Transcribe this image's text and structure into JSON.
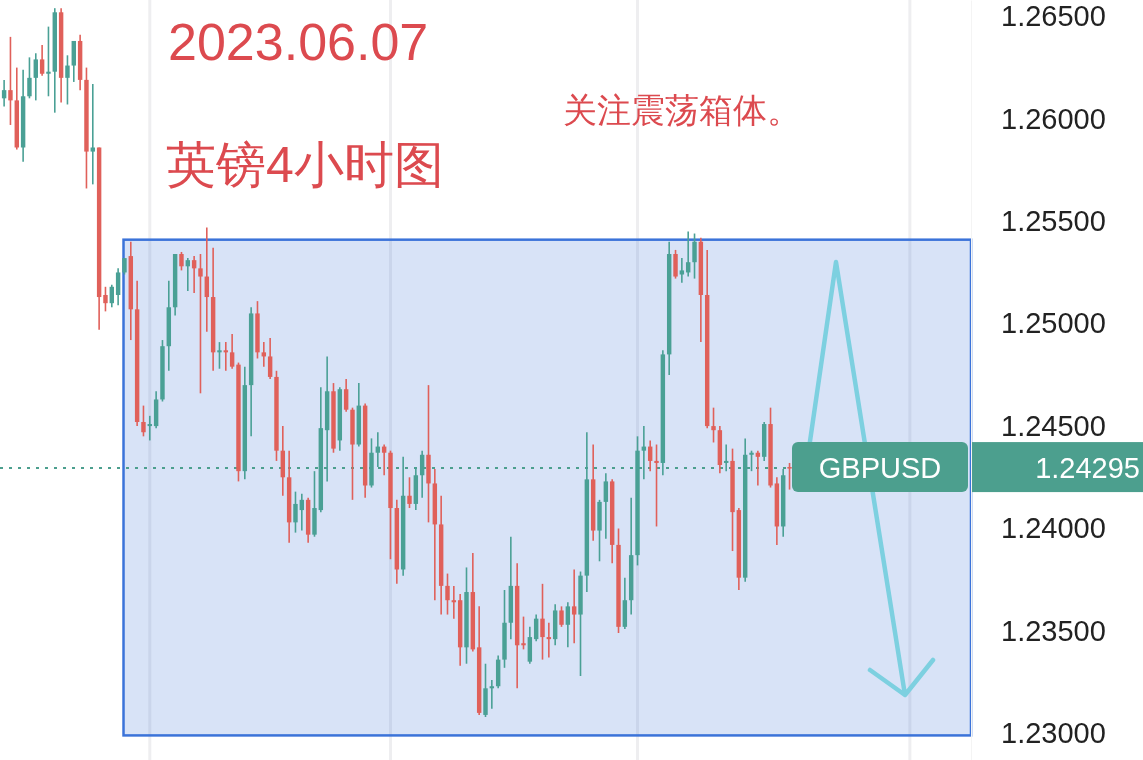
{
  "chart_data": {
    "type": "candlestick",
    "title": "2023.06.07",
    "subtitle": "英镑4小时图",
    "annotations": [
      "关注震荡箱体。",
      "1.24295"
    ],
    "categories": [
      null,
      null,
      null,
      null,
      null,
      null,
      null,
      null,
      null,
      null,
      null,
      null,
      null,
      null,
      null,
      null,
      null,
      null,
      null,
      null,
      null,
      null,
      null,
      null,
      null,
      null,
      null,
      null,
      null,
      null,
      null,
      null,
      null,
      null,
      null,
      null,
      null,
      null,
      null,
      null,
      null,
      null,
      null,
      null,
      null,
      null,
      null,
      null,
      null,
      null,
      null,
      null,
      null,
      null,
      null,
      null,
      null,
      null,
      null,
      null,
      null,
      null,
      null,
      null,
      null,
      null,
      null,
      null,
      null,
      null,
      null,
      null,
      null,
      null,
      null,
      null,
      null,
      null,
      null,
      null,
      null,
      null,
      null,
      null,
      null,
      null,
      null,
      null,
      null,
      null,
      null,
      null,
      null,
      null,
      null,
      null,
      null,
      null,
      null,
      null,
      null,
      null,
      null,
      null,
      null,
      null,
      null,
      null,
      null,
      null,
      null,
      null,
      null,
      null,
      null,
      null,
      null,
      null,
      null,
      null,
      null,
      null,
      null,
      null,
      null,
      null,
      null,
      null,
      null,
      null,
      null,
      null,
      null,
      null,
      null,
      null,
      null,
      null,
      null,
      null,
      null,
      null,
      null,
      null,
      null,
      null,
      null,
      null,
      null,
      null,
      null,
      null,
      null
    ],
    "ohlc": [
      [
        1.261,
        1.2619,
        1.2606,
        1.2614
      ],
      [
        1.2614,
        1.264,
        1.2597,
        1.2609
      ],
      [
        1.2609,
        1.2625,
        1.2585,
        1.2586
      ],
      [
        1.2586,
        1.2624,
        1.2579,
        1.2611
      ],
      [
        1.2611,
        1.263,
        1.261,
        1.262
      ],
      [
        1.262,
        1.2632,
        1.2609,
        1.2629
      ],
      [
        1.2629,
        1.2636,
        1.2621,
        1.2622
      ],
      [
        1.2622,
        1.2645,
        1.2611,
        1.2623
      ],
      [
        1.2623,
        1.2654,
        1.2603,
        1.2652
      ],
      [
        1.2652,
        1.2654,
        1.2608,
        1.262
      ],
      [
        1.262,
        1.2631,
        1.2607,
        1.2626
      ],
      [
        1.2626,
        1.2638,
        1.2618,
        1.2638
      ],
      [
        1.2638,
        1.2641,
        1.2614,
        1.2619
      ],
      [
        1.2619,
        1.2625,
        1.2566,
        1.2584
      ],
      [
        1.2584,
        1.2617,
        1.2568,
        1.2586
      ],
      [
        1.2586,
        1.2586,
        1.2497,
        1.2513
      ],
      [
        1.2514,
        1.2518,
        1.2506,
        1.251
      ],
      [
        1.251,
        1.2519,
        1.2508,
        1.2518
      ],
      [
        1.2514,
        1.2527,
        1.2509,
        1.2525
      ],
      [
        1.2525,
        1.2532,
        1.2524,
        1.2532
      ],
      [
        1.2533,
        1.254,
        1.2492,
        1.2507
      ],
      [
        1.2507,
        1.2521,
        1.245,
        1.2452
      ],
      [
        1.2452,
        1.246,
        1.2445,
        1.2447
      ],
      [
        1.245,
        1.2455,
        1.2443,
        1.2451
      ],
      [
        1.245,
        1.2467,
        1.2449,
        1.2463
      ],
      [
        1.2463,
        1.2492,
        1.2462,
        1.2489
      ],
      [
        1.2489,
        1.2521,
        1.2477,
        1.2508
      ],
      [
        1.2508,
        1.2534,
        1.2504,
        1.2534
      ],
      [
        1.2534,
        1.2535,
        1.2526,
        1.2528
      ],
      [
        1.2528,
        1.2532,
        1.2516,
        1.2531
      ],
      [
        1.2531,
        1.2533,
        1.2515,
        1.2527
      ],
      [
        1.2527,
        1.2534,
        1.2466,
        1.2523
      ],
      [
        1.2523,
        1.2547,
        1.2496,
        1.2513
      ],
      [
        1.2513,
        1.2537,
        1.2477,
        1.2486
      ],
      [
        1.2486,
        1.2491,
        1.2478,
        1.2487
      ],
      [
        1.2487,
        1.2491,
        1.2477,
        1.2486
      ],
      [
        1.2486,
        1.2495,
        1.2478,
        1.2479
      ],
      [
        1.248,
        1.2481,
        1.2423,
        1.2428
      ],
      [
        1.2428,
        1.2479,
        1.2424,
        1.247
      ],
      [
        1.247,
        1.2508,
        1.2445,
        1.2505
      ],
      [
        1.2505,
        1.2511,
        1.2483,
        1.2486
      ],
      [
        1.2486,
        1.2491,
        1.2479,
        1.2484
      ],
      [
        1.2484,
        1.2493,
        1.2473,
        1.2474
      ],
      [
        1.2474,
        1.2477,
        1.2433,
        1.2438
      ],
      [
        1.2438,
        1.245,
        1.2416,
        1.2425
      ],
      [
        1.2425,
        1.2438,
        1.2393,
        1.2403
      ],
      [
        1.2403,
        1.2418,
        1.2398,
        1.2412
      ],
      [
        1.2409,
        1.2417,
        1.2399,
        1.2414
      ],
      [
        1.2414,
        1.2415,
        1.2393,
        1.2397
      ],
      [
        1.2397,
        1.2428,
        1.2396,
        1.241
      ],
      [
        1.2409,
        1.2469,
        1.2408,
        1.2449
      ],
      [
        1.2448,
        1.2484,
        1.2423,
        1.2467
      ],
      [
        1.2467,
        1.2471,
        1.2437,
        1.2439
      ],
      [
        1.2443,
        1.2469,
        1.2438,
        1.2468
      ],
      [
        1.2468,
        1.2473,
        1.2457,
        1.2458
      ],
      [
        1.2458,
        1.2459,
        1.2414,
        1.2441
      ],
      [
        1.2441,
        1.2471,
        1.244,
        1.246
      ],
      [
        1.246,
        1.2461,
        1.2415,
        1.2421
      ],
      [
        1.2421,
        1.2444,
        1.242,
        1.2437
      ],
      [
        1.2437,
        1.2447,
        1.243,
        1.244
      ],
      [
        1.244,
        1.2441,
        1.2426,
        1.2437
      ],
      [
        1.2437,
        1.2438,
        1.2385,
        1.241
      ],
      [
        1.241,
        1.2414,
        1.2373,
        1.238
      ],
      [
        1.238,
        1.2435,
        1.2377,
        1.2416
      ],
      [
        1.2416,
        1.2425,
        1.241,
        1.2412
      ],
      [
        1.2412,
        1.243,
        1.2409,
        1.2426
      ],
      [
        1.2426,
        1.2438,
        1.2415,
        1.2436
      ],
      [
        1.2436,
        1.247,
        1.2403,
        1.2422
      ],
      [
        1.2422,
        1.2429,
        1.2365,
        1.2402
      ],
      [
        1.2402,
        1.2416,
        1.2358,
        1.2372
      ],
      [
        1.2372,
        1.2378,
        1.2358,
        1.2365
      ],
      [
        1.2365,
        1.2372,
        1.2356,
        1.2364
      ],
      [
        1.2365,
        1.2368,
        1.2333,
        1.2342
      ],
      [
        1.2342,
        1.2381,
        1.2334,
        1.2369
      ],
      [
        1.2369,
        1.2388,
        1.234,
        1.2341
      ],
      [
        1.2342,
        1.2362,
        1.2309,
        1.231
      ],
      [
        1.2309,
        1.2334,
        1.2308,
        1.2322
      ],
      [
        1.2322,
        1.2326,
        1.2312,
        1.2323
      ],
      [
        1.2323,
        1.2338,
        1.2322,
        1.2336
      ],
      [
        1.2336,
        1.237,
        1.2332,
        1.2354
      ],
      [
        1.2354,
        1.2396,
        1.2346,
        1.2372
      ],
      [
        1.2372,
        1.2383,
        1.2322,
        1.2343
      ],
      [
        1.2344,
        1.2357,
        1.2341,
        1.2343
      ],
      [
        1.2335,
        1.2352,
        1.2334,
        1.2347
      ],
      [
        1.2346,
        1.2358,
        1.2345,
        1.2356
      ],
      [
        1.2356,
        1.2373,
        1.2336,
        1.2347
      ],
      [
        1.2347,
        1.2354,
        1.2337,
        1.2346
      ],
      [
        1.2346,
        1.2363,
        1.2343,
        1.236
      ],
      [
        1.236,
        1.2362,
        1.2352,
        1.2353
      ],
      [
        1.2353,
        1.2364,
        1.2342,
        1.2362
      ],
      [
        1.2362,
        1.238,
        1.2344,
        1.2358
      ],
      [
        1.2358,
        1.2379,
        1.2328,
        1.2377
      ],
      [
        1.2377,
        1.2447,
        1.2369,
        1.2424
      ],
      [
        1.2424,
        1.2441,
        1.2394,
        1.2399
      ],
      [
        1.2399,
        1.2414,
        1.2384,
        1.2413
      ],
      [
        1.2413,
        1.2427,
        1.2395,
        1.2423
      ],
      [
        1.2423,
        1.2424,
        1.2383,
        1.2392
      ],
      [
        1.2392,
        1.24,
        1.2349,
        1.2352
      ],
      [
        1.2352,
        1.2376,
        1.2351,
        1.2365
      ],
      [
        1.2365,
        1.2415,
        1.2358,
        1.2387
      ],
      [
        1.2387,
        1.2445,
        1.2382,
        1.2438
      ],
      [
        1.2438,
        1.245,
        1.2424,
        1.244
      ],
      [
        1.244,
        1.2443,
        1.2428,
        1.2433
      ],
      [
        1.2433,
        1.2441,
        1.2401,
        1.2432
      ],
      [
        1.2432,
        1.2487,
        1.2426,
        1.2485
      ],
      [
        1.2485,
        1.254,
        1.2475,
        1.2534
      ],
      [
        1.2534,
        1.2536,
        1.2522,
        1.2523
      ],
      [
        1.2524,
        1.2532,
        1.252,
        1.2526
      ],
      [
        1.2525,
        1.2545,
        1.2523,
        1.253
      ],
      [
        1.253,
        1.2544,
        1.2522,
        1.254
      ],
      [
        1.254,
        1.2542,
        1.2491,
        1.2514
      ],
      [
        1.2514,
        1.2536,
        1.2449,
        1.245
      ],
      [
        1.245,
        1.2459,
        1.2442,
        1.2448
      ],
      [
        1.2448,
        1.245,
        1.2427,
        1.2431
      ],
      [
        1.2432,
        1.2441,
        1.2428,
        1.2433
      ],
      [
        1.2433,
        1.2439,
        1.2389,
        1.2408
      ],
      [
        1.2409,
        1.241,
        1.237,
        1.2376
      ],
      [
        1.2376,
        1.2444,
        1.2374,
        1.2436
      ],
      [
        1.2436,
        1.2438,
        1.2428,
        1.2437
      ],
      [
        1.2437,
        1.2438,
        1.2421,
        1.2435
      ],
      [
        1.2435,
        1.2452,
        1.2433,
        1.2451
      ],
      [
        1.2451,
        1.2459,
        1.242,
        1.2421
      ],
      [
        1.2422,
        1.2425,
        1.2392,
        1.2401
      ],
      [
        1.2401,
        1.2429,
        1.2396,
        1.2426
      ],
      [
        1.243,
        1.2432,
        1.2419,
        1.24295
      ],
      null,
      null,
      null,
      null,
      null,
      null,
      null,
      null,
      null,
      null,
      null,
      null,
      null,
      null,
      null,
      null,
      null,
      null,
      null,
      null,
      null,
      null,
      null,
      null,
      null,
      null,
      null,
      null
    ],
    "ylim": [
      1.2287,
      1.2658
    ],
    "yticks": [
      {
        "value": 1.23,
        "label": "1.23000"
      },
      {
        "value": 1.235,
        "label": "1.23500"
      },
      {
        "value": 1.24,
        "label": "1.24000"
      },
      {
        "value": 1.245,
        "label": "1.24500"
      },
      {
        "value": 1.25,
        "label": "1.25000"
      },
      {
        "value": 1.255,
        "label": "1.25500"
      },
      {
        "value": 1.26,
        "label": "1.26000"
      },
      {
        "value": 1.265,
        "label": "1.26500"
      }
    ],
    "tick_labels": "y",
    "bands": [
      {
        "axis": "y",
        "from": 1.2299,
        "to": 1.2541,
        "color": "#3b73d9"
      }
    ],
    "ref_lines": [
      {
        "axis": "y",
        "value": 1.24295,
        "label": "GBPUSD",
        "color": "#4c9f8e",
        "line_style": "dotted"
      }
    ]
  }
}
